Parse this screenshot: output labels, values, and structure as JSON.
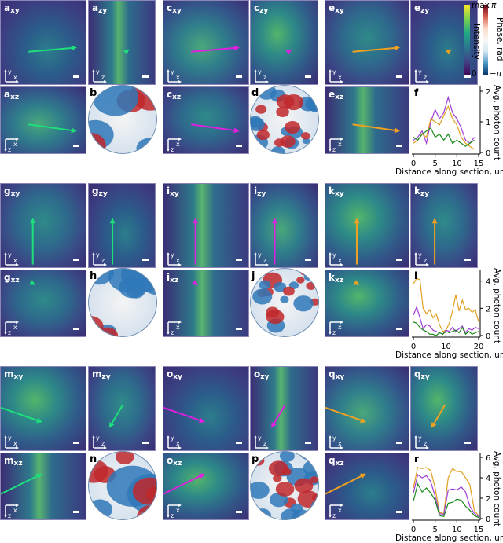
{
  "figure": {
    "colors": {
      "green": "#1ee07a",
      "magenta": "#e020e0",
      "orange": "#f0a020",
      "plot_green": "#1a8a1a",
      "plot_magenta": "#a040d8",
      "plot_orange": "#e0a020",
      "viridis_dark": "#3b2a6e",
      "viridis_mid": "#2d6e8e",
      "viridis_bright": "#9ad83a"
    },
    "colorbars": {
      "intensity": {
        "label": "Intensity",
        "max": "max",
        "min": "0"
      },
      "phase": {
        "label": "Phase, rad",
        "max": "π",
        "min": "−π"
      }
    },
    "rows": [
      {
        "image_panels": [
          {
            "letter": "a",
            "sub": "xy",
            "axes": "y-x"
          },
          {
            "letter": "a",
            "sub": "zy",
            "axes": "y-z"
          },
          {
            "letter": "c",
            "sub": "xy",
            "axes": "y-x"
          },
          {
            "letter": "c",
            "sub": "zy",
            "axes": "y-z"
          },
          {
            "letter": "e",
            "sub": "xy",
            "axes": "y-x"
          },
          {
            "letter": "e",
            "sub": "zy",
            "axes": "y-z"
          },
          {
            "letter": "a",
            "sub": "xz",
            "axes": "x-z"
          },
          {
            "letter": "c",
            "sub": "xz",
            "axes": "x-z"
          },
          {
            "letter": "e",
            "sub": "xz",
            "axes": "x-z"
          }
        ],
        "phase_panels": [
          {
            "letter": "b"
          },
          {
            "letter": "d"
          }
        ],
        "plot": {
          "letter": "f"
        }
      },
      {
        "image_panels": [
          {
            "letter": "g",
            "sub": "xy",
            "axes": "y-x"
          },
          {
            "letter": "g",
            "sub": "zy",
            "axes": "y-z"
          },
          {
            "letter": "i",
            "sub": "xy",
            "axes": "y-x"
          },
          {
            "letter": "i",
            "sub": "zy",
            "axes": "y-z"
          },
          {
            "letter": "k",
            "sub": "xy",
            "axes": "y-x"
          },
          {
            "letter": "k",
            "sub": "zy",
            "axes": "y-z"
          },
          {
            "letter": "g",
            "sub": "xz",
            "axes": "x-z"
          },
          {
            "letter": "i",
            "sub": "xz",
            "axes": "x-z"
          },
          {
            "letter": "k",
            "sub": "xz",
            "axes": "x-z"
          }
        ],
        "phase_panels": [
          {
            "letter": "h"
          },
          {
            "letter": "j"
          }
        ],
        "plot": {
          "letter": "l"
        }
      },
      {
        "image_panels": [
          {
            "letter": "m",
            "sub": "xy",
            "axes": "y-x"
          },
          {
            "letter": "m",
            "sub": "zy",
            "axes": "y-z"
          },
          {
            "letter": "o",
            "sub": "xy",
            "axes": "y-x"
          },
          {
            "letter": "o",
            "sub": "zy",
            "axes": "y-z"
          },
          {
            "letter": "q",
            "sub": "xy",
            "axes": "y-x"
          },
          {
            "letter": "q",
            "sub": "zy",
            "axes": "y-z"
          },
          {
            "letter": "m",
            "sub": "xz",
            "axes": "x-z"
          },
          {
            "letter": "o",
            "sub": "xz",
            "axes": "x-z"
          },
          {
            "letter": "q",
            "sub": "xz",
            "axes": "x-z"
          }
        ],
        "phase_panels": [
          {
            "letter": "n"
          },
          {
            "letter": "p"
          }
        ],
        "plot": {
          "letter": "r"
        }
      }
    ]
  },
  "chart_data": [
    {
      "panel": "f",
      "type": "line",
      "xlabel": "Distance along section, um",
      "ylabel": "Avg. photon count",
      "xlim": [
        0,
        15
      ],
      "ylim": [
        0,
        2
      ],
      "xticks": [
        "0",
        "5",
        "10",
        "15"
      ],
      "yticks": [
        "0",
        "1",
        "2"
      ],
      "x": [
        0,
        1,
        2,
        3,
        4,
        5,
        6,
        7,
        8,
        9,
        10,
        11,
        12,
        13,
        14
      ],
      "series": [
        {
          "name": "magenta",
          "color": "#a040d8",
          "values": [
            0.4,
            0.5,
            0.7,
            0.3,
            1.0,
            1.4,
            1.1,
            1.3,
            1.8,
            1.3,
            1.1,
            0.8,
            0.4,
            0.3,
            0.5
          ]
        },
        {
          "name": "orange",
          "color": "#e0a020",
          "values": [
            0.3,
            0.4,
            0.6,
            0.5,
            1.1,
            1.0,
            0.9,
            1.2,
            1.5,
            1.1,
            0.9,
            0.5,
            0.3,
            0.2,
            0.1
          ]
        },
        {
          "name": "green",
          "color": "#1a8a1a",
          "values": [
            0.5,
            0.4,
            0.6,
            0.7,
            0.8,
            0.5,
            0.6,
            0.4,
            0.6,
            0.3,
            0.4,
            0.3,
            0.2,
            0.3,
            0.4
          ]
        }
      ]
    },
    {
      "panel": "l",
      "type": "line",
      "xlabel": "Distance along section, um",
      "ylabel": "Avg. photon count",
      "xlim": [
        0,
        20
      ],
      "ylim": [
        0,
        4.5
      ],
      "xticks": [
        "0",
        "10",
        "20"
      ],
      "yticks": [
        "0",
        "2",
        "4"
      ],
      "x": [
        0,
        1,
        2,
        3,
        4,
        5,
        6,
        7,
        8,
        9,
        10,
        11,
        12,
        13,
        14,
        15,
        16,
        17,
        18,
        19,
        20
      ],
      "series": [
        {
          "name": "orange",
          "color": "#e0a020",
          "values": [
            3.8,
            4.2,
            4.1,
            2.0,
            1.6,
            1.9,
            1.3,
            1.6,
            0.8,
            0.3,
            0.4,
            0.9,
            1.8,
            3.0,
            1.8,
            2.6,
            1.9,
            2.0,
            1.7,
            1.9,
            1.0
          ]
        },
        {
          "name": "magenta",
          "color": "#a040d8",
          "values": [
            1.5,
            2.1,
            1.3,
            0.5,
            0.8,
            0.7,
            0.4,
            0.3,
            0.2,
            0.1,
            0.4,
            0.3,
            0.6,
            0.3,
            0.5,
            0.7,
            0.2,
            0.5,
            0.4,
            0.6,
            0.5
          ]
        },
        {
          "name": "green",
          "color": "#1a8a1a",
          "values": [
            1.0,
            0.9,
            0.6,
            0.4,
            0.3,
            0.1,
            0.1,
            0.0,
            0.2,
            0.1,
            0.3,
            0.2,
            0.3,
            0.4,
            0.2,
            0.6,
            0.1,
            0.3,
            0.1,
            0.2,
            0.3
          ]
        }
      ]
    },
    {
      "panel": "r",
      "type": "line",
      "xlabel": "Distance along section, um",
      "ylabel": "Avg. photon count",
      "xlim": [
        0,
        15
      ],
      "ylim": [
        0,
        6
      ],
      "xticks": [
        "0",
        "5",
        "10",
        "15"
      ],
      "yticks": [
        "0",
        "2",
        "4",
        "6"
      ],
      "x": [
        0,
        1,
        2,
        3,
        4,
        5,
        6,
        7,
        8,
        9,
        10,
        11,
        12,
        13,
        14,
        15
      ],
      "series": [
        {
          "name": "orange",
          "color": "#e0a020",
          "values": [
            3.0,
            5.0,
            4.9,
            5.0,
            4.7,
            3.0,
            0.6,
            0.5,
            4.0,
            4.9,
            4.6,
            4.6,
            4.0,
            3.3,
            0.8,
            0.3
          ]
        },
        {
          "name": "magenta",
          "color": "#a040d8",
          "values": [
            2.5,
            4.3,
            4.0,
            4.2,
            3.6,
            2.2,
            0.5,
            0.4,
            2.8,
            2.9,
            2.8,
            3.1,
            2.6,
            1.2,
            0.5,
            0.2
          ]
        },
        {
          "name": "green",
          "color": "#1a8a1a",
          "values": [
            1.7,
            3.4,
            2.6,
            3.0,
            2.5,
            1.8,
            0.3,
            0.2,
            1.5,
            1.6,
            1.9,
            1.8,
            1.2,
            0.8,
            0.3,
            0.1
          ]
        }
      ]
    }
  ]
}
